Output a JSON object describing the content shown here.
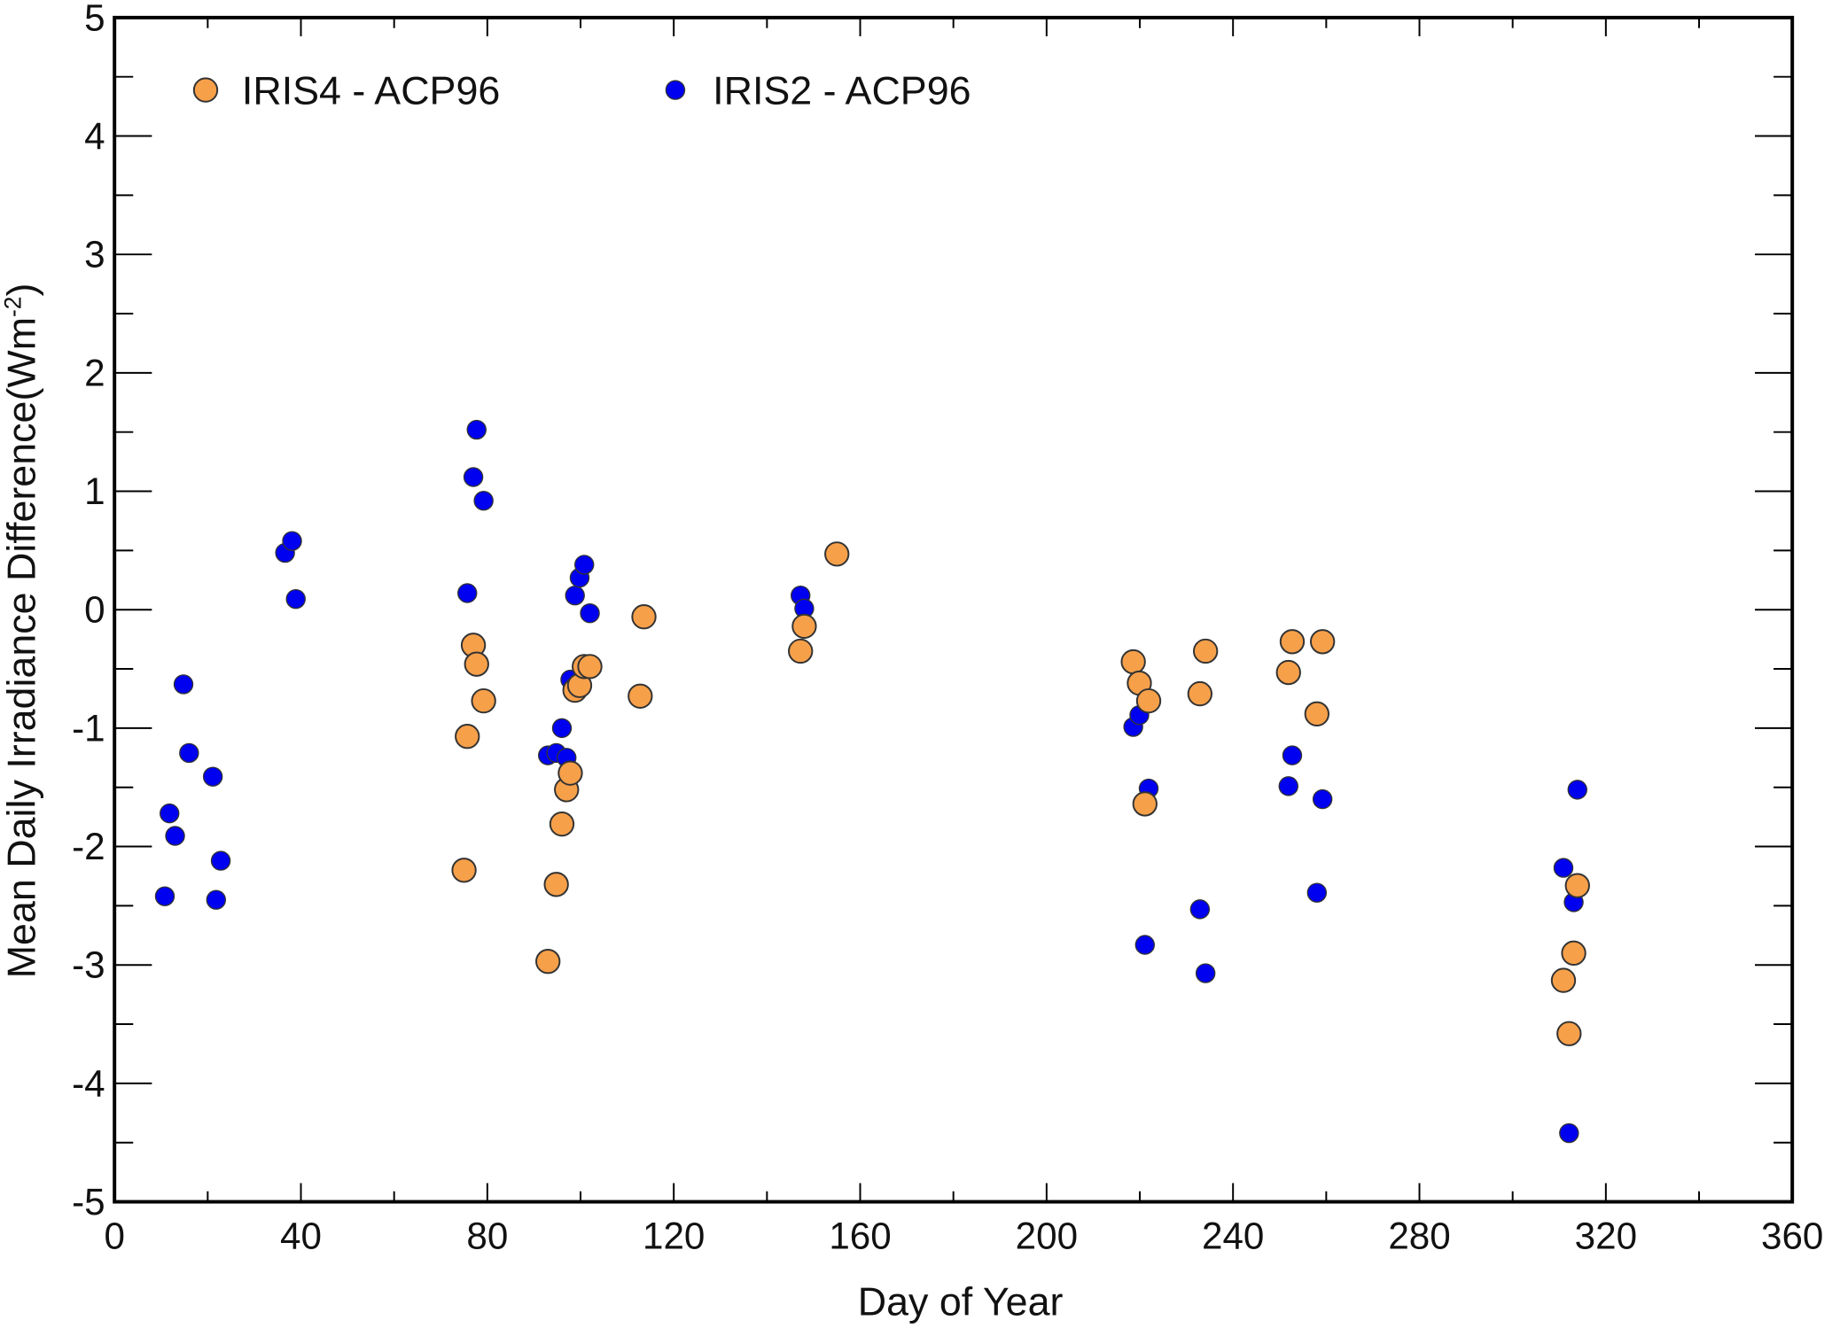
{
  "chart_data": {
    "type": "scatter",
    "title": "",
    "xlabel": "Day of Year",
    "ylabel": "Mean Daily Irradiance Difference(Wm",
    "ylabel_sup": "-2",
    "ylabel_end": ")",
    "xlim": [
      0,
      360
    ],
    "ylim": [
      -5,
      5
    ],
    "xticks": [
      0,
      40,
      80,
      120,
      160,
      200,
      240,
      280,
      320,
      360
    ],
    "yticks": [
      -5,
      -4,
      -3,
      -2,
      -1,
      0,
      1,
      2,
      3,
      4,
      5
    ],
    "grid": false,
    "legend_position": "top-left",
    "series": [
      {
        "name": "IRIS4 - ACP96",
        "color": "#F7A04A",
        "points": [
          [
            75.7,
            -1.07
          ],
          [
            75.0,
            -2.2
          ],
          [
            77.0,
            -0.3
          ],
          [
            77.7,
            -0.46
          ],
          [
            79.2,
            -0.77
          ],
          [
            93.0,
            -2.97
          ],
          [
            94.8,
            -2.32
          ],
          [
            96.0,
            -1.81
          ],
          [
            97.0,
            -1.52
          ],
          [
            97.8,
            -1.38
          ],
          [
            98.8,
            -0.68
          ],
          [
            99.8,
            -0.64
          ],
          [
            100.8,
            -0.48
          ],
          [
            102.0,
            -0.48
          ],
          [
            112.8,
            -0.73
          ],
          [
            113.6,
            -0.06
          ],
          [
            147.2,
            -0.35
          ],
          [
            148.0,
            -0.14
          ],
          [
            155.0,
            0.47
          ],
          [
            218.6,
            -0.44
          ],
          [
            219.9,
            -0.62
          ],
          [
            221.9,
            -0.77
          ],
          [
            221.1,
            -1.64
          ],
          [
            232.9,
            -0.71
          ],
          [
            234.1,
            -0.35
          ],
          [
            251.9,
            -0.53
          ],
          [
            252.7,
            -0.27
          ],
          [
            258.0,
            -0.88
          ],
          [
            259.2,
            -0.27
          ],
          [
            310.9,
            -3.13
          ],
          [
            312.1,
            -3.58
          ],
          [
            313.1,
            -2.9
          ],
          [
            313.9,
            -2.33
          ]
        ]
      },
      {
        "name": "IRIS2 - ACP96",
        "color": "#0000F0",
        "points": [
          [
            10.8,
            -2.42
          ],
          [
            11.8,
            -1.72
          ],
          [
            13.0,
            -1.91
          ],
          [
            14.8,
            -0.63
          ],
          [
            16.0,
            -1.21
          ],
          [
            21.1,
            -1.41
          ],
          [
            21.8,
            -2.45
          ],
          [
            22.8,
            -2.12
          ],
          [
            36.6,
            0.48
          ],
          [
            38.1,
            0.58
          ],
          [
            38.9,
            0.09
          ],
          [
            75.7,
            0.14
          ],
          [
            77.0,
            1.12
          ],
          [
            77.7,
            1.52
          ],
          [
            79.2,
            0.92
          ],
          [
            93.0,
            -1.23
          ],
          [
            94.8,
            -1.21
          ],
          [
            96.0,
            -1.0
          ],
          [
            97.0,
            -1.25
          ],
          [
            97.8,
            -0.59
          ],
          [
            98.8,
            0.12
          ],
          [
            99.8,
            0.27
          ],
          [
            100.8,
            0.38
          ],
          [
            102.0,
            -0.03
          ],
          [
            113.6,
            -0.05
          ],
          [
            147.2,
            0.12
          ],
          [
            148.0,
            0.01
          ],
          [
            218.6,
            -0.99
          ],
          [
            219.9,
            -0.89
          ],
          [
            221.9,
            -1.51
          ],
          [
            221.1,
            -2.83
          ],
          [
            232.9,
            -2.53
          ],
          [
            234.1,
            -3.07
          ],
          [
            251.9,
            -1.49
          ],
          [
            252.7,
            -1.23
          ],
          [
            258.0,
            -2.39
          ],
          [
            259.2,
            -1.6
          ],
          [
            310.9,
            -2.18
          ],
          [
            312.1,
            -4.42
          ],
          [
            313.1,
            -2.47
          ],
          [
            313.9,
            -1.52
          ]
        ]
      }
    ]
  }
}
